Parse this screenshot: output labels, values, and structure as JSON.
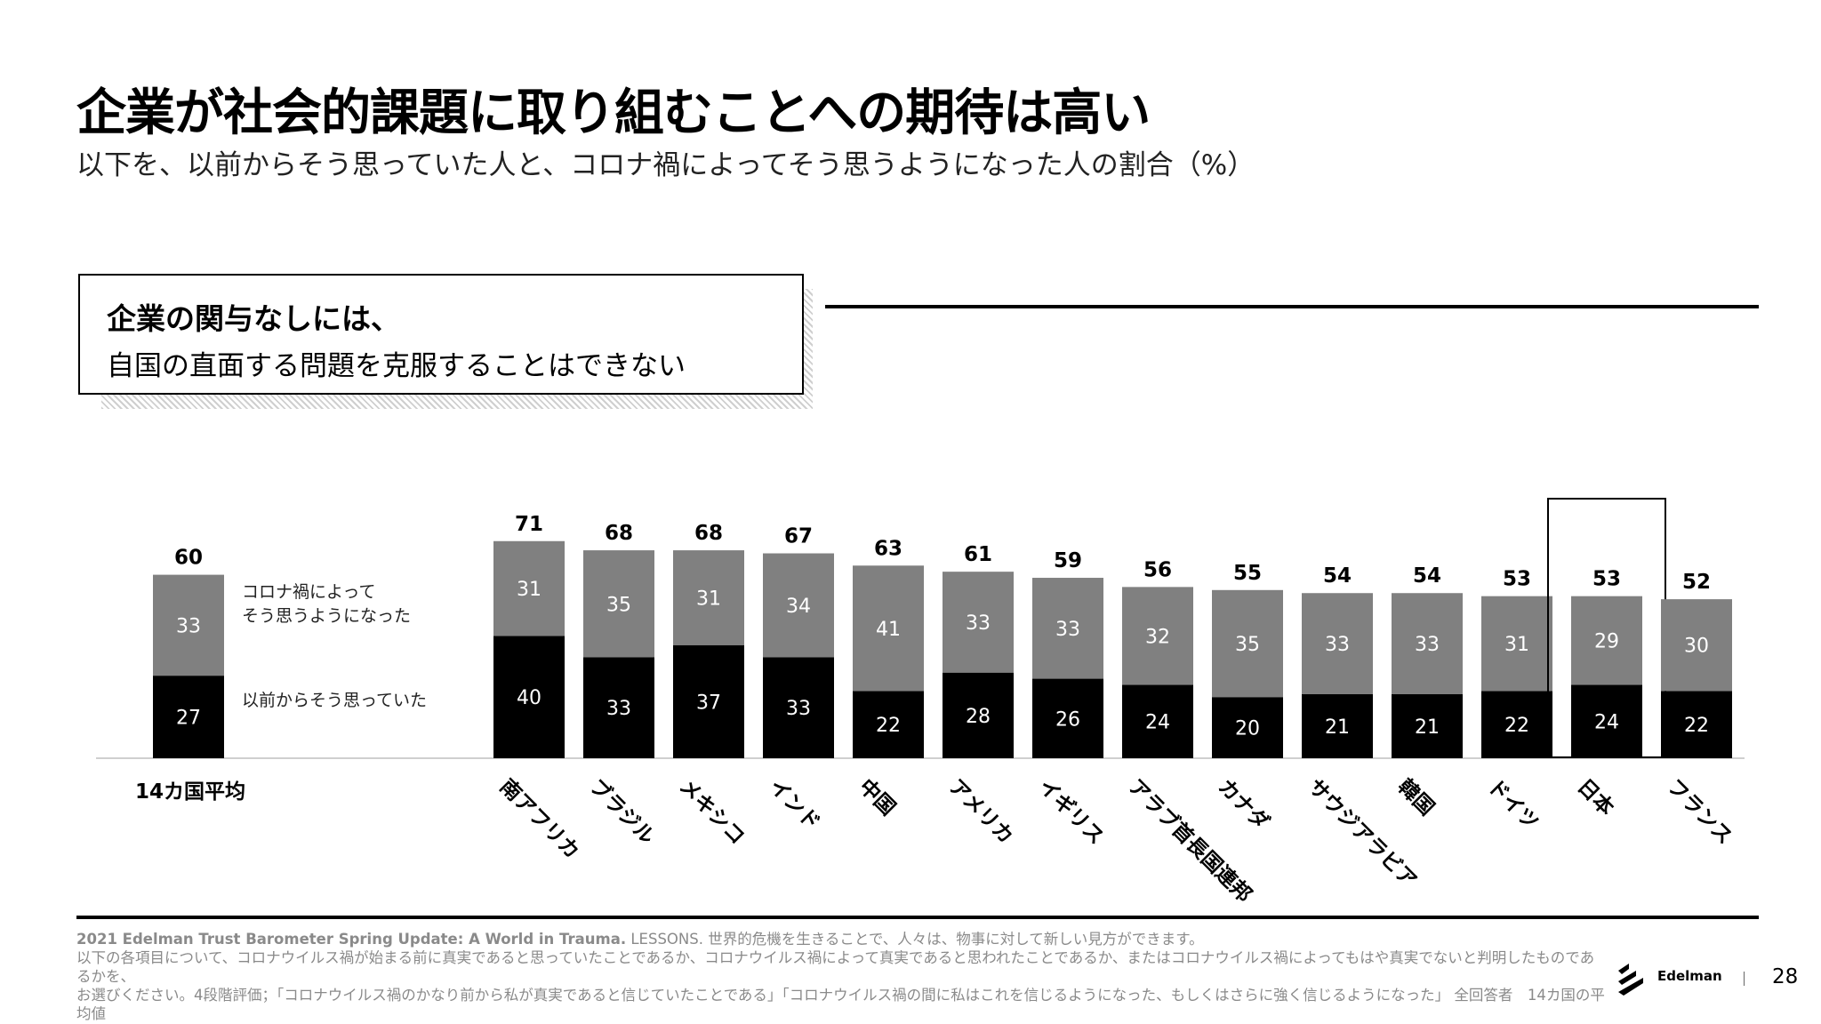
{
  "title": "企業が社会的課題に取り組むことへの期待は高い",
  "subtitle": "以下を、以前からそう思っていた人と、コロナ禍によってそう思うようになった人の割合（%）",
  "question": {
    "bold": "企業の関与なしには、",
    "text": "自国の直面する問題を克服することはできない"
  },
  "chart_data": {
    "type": "bar",
    "stacked": true,
    "categories": [
      "14カ国平均",
      "南アフリカ",
      "ブラジル",
      "メキシコ",
      "インド",
      "中国",
      "アメリカ",
      "イギリス",
      "アラブ首長国連邦",
      "カナダ",
      "サウジアラビア",
      "韓国",
      "ドイツ",
      "日本",
      "フランス"
    ],
    "series": [
      {
        "name": "以前からそう思っていた",
        "color": "#000000",
        "values": [
          27,
          40,
          33,
          37,
          33,
          22,
          28,
          26,
          24,
          20,
          21,
          21,
          22,
          24,
          22
        ]
      },
      {
        "name": "コロナ禍によって そう思うようになった",
        "color": "#808080",
        "values": [
          33,
          31,
          35,
          31,
          34,
          41,
          33,
          33,
          32,
          35,
          33,
          33,
          31,
          29,
          30
        ]
      }
    ],
    "totals": [
      60,
      71,
      68,
      68,
      67,
      63,
      61,
      59,
      56,
      55,
      54,
      54,
      53,
      53,
      52
    ],
    "highlighted": "日本",
    "legend": [
      "コロナ禍によって",
      "そう思うようになった",
      "以前からそう思っていた"
    ]
  },
  "footnote": {
    "source": "2021 Edelman Trust Barometer Spring Update: A World in Trauma.",
    "source_rest": " LESSONS. 世界的危機を生きることで、人々は、物事に対して新しい見方ができます。",
    "line2": "以下の各項目について、コロナウイルス禍が始まる前に真実であると思っていたことであるか、コロナウイルス禍によって真実であると思われたことであるか、またはコロナウイルス禍によってもはや真実でないと判明したものであるかを、",
    "line3": "お選びください。4段階評価；「コロナウイルス禍のかなり前から私が真実であると信じていたことである」「コロナウイルス禍の間に私はこれを信じるようになった、もしくはさらに強く信じるようになった」 全回答者　14カ国の平均値"
  },
  "logo_text": "Edelman",
  "page_number": "28"
}
